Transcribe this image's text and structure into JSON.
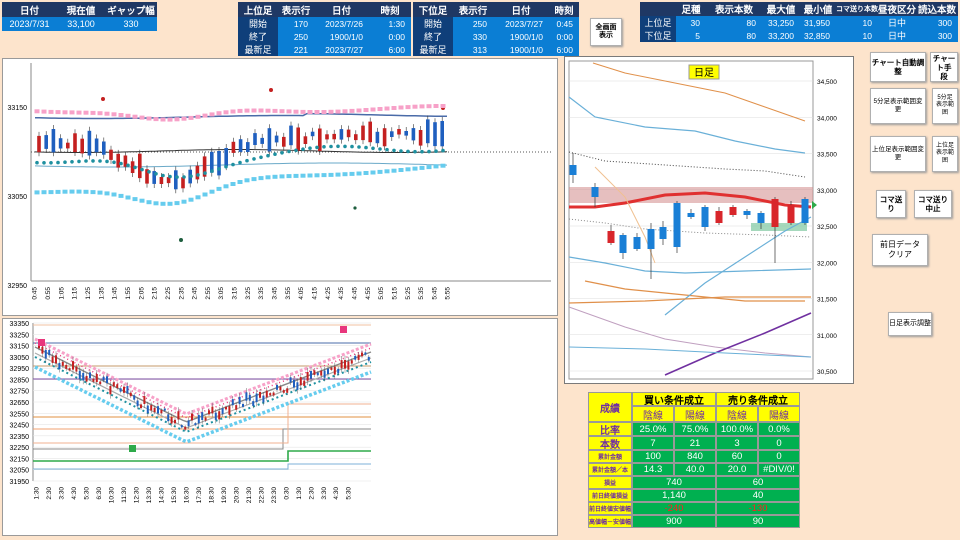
{
  "top_left": {
    "headers": [
      "日付",
      "現在値",
      "ギャップ幅"
    ],
    "values": [
      "2023/7/31",
      "33,100",
      "330"
    ]
  },
  "upper_leg": {
    "title": "上位足",
    "labels": [
      "開始",
      "終了",
      "最新足"
    ],
    "col_headers": [
      "表示行",
      "日付",
      "時刻"
    ],
    "rows": [
      [
        "170",
        "2023/7/26",
        "1:30"
      ],
      [
        "250",
        "1900/1/0",
        "0:00"
      ],
      [
        "221",
        "2023/7/27",
        "6:00"
      ]
    ]
  },
  "lower_leg": {
    "title": "下位足",
    "labels": [
      "開始",
      "終了",
      "最新足"
    ],
    "col_headers": [
      "表示行",
      "日付",
      "時刻"
    ],
    "rows": [
      [
        "250",
        "2023/7/27",
        "0:45"
      ],
      [
        "330",
        "1900/1/0",
        "0:00"
      ],
      [
        "313",
        "1900/1/0",
        "6:00"
      ]
    ]
  },
  "full_screen_button": "全画面\n表示",
  "summary": {
    "headers": [
      "足種",
      "表示本数",
      "最大値",
      "最小値",
      "コマ送り本数",
      "昼夜区分",
      "読込本数"
    ],
    "rows": [
      {
        "label": "上位足",
        "values": [
          "30",
          "80",
          "33,250",
          "31,950",
          "10",
          "日中",
          "300"
        ]
      },
      {
        "label": "下位足",
        "values": [
          "5",
          "80",
          "33,200",
          "32,850",
          "10",
          "日中",
          "300"
        ]
      }
    ]
  },
  "buttons": {
    "chart_auto": "チャート自動調整",
    "chart_custom": "チャート手\n段",
    "lower_range": "5分足表示範囲変更",
    "lower_range2": "5分足\n表示範\n囲",
    "upper_range": "上位足表示範囲変更",
    "upper_range2": "上位足\n表示範\n囲",
    "step": "コマ送り",
    "step_stop": "コマ送り\n中止",
    "clear_prev": "前日データ\nクリア",
    "daily_adjust": "日足表示調整"
  },
  "chart_top": {
    "y_ticks": [
      "33150",
      "33050",
      "32950"
    ],
    "x_ticks": [
      "0:45",
      "0:55",
      "1:05",
      "1:15",
      "1:25",
      "1:35",
      "1:45",
      "1:55",
      "2:05",
      "2:15",
      "2:25",
      "2:35",
      "2:45",
      "2:55",
      "3:05",
      "3:15",
      "3:25",
      "3:35",
      "3:45",
      "3:55",
      "4:05",
      "4:15",
      "4:25",
      "4:35",
      "4:45",
      "4:55",
      "5:05",
      "5:15",
      "5:25",
      "5:35",
      "5:45",
      "5:55"
    ],
    "colors": {
      "upper_band": "#4a6ba8",
      "mid_band": "#555555",
      "pink": "#f7a1c8",
      "magenta": "#e8367c",
      "teal": "#1e90a0",
      "cyan": "#66ccee"
    }
  },
  "chart_bottom": {
    "y_ticks": [
      "33350",
      "33250",
      "33150",
      "33050",
      "32950",
      "32850",
      "32750",
      "32650",
      "32550",
      "32450",
      "32350",
      "32250",
      "32150",
      "32050",
      "31950"
    ],
    "x_ticks": [
      "1:30",
      "2:30",
      "3:30",
      "4:30",
      "5:30",
      "6:30",
      "10:30",
      "11:30",
      "12:30",
      "13:30",
      "14:30",
      "15:30",
      "16:30",
      "17:30",
      "18:30",
      "19:30",
      "20:30",
      "21:30",
      "22:30",
      "23:30",
      "0:30",
      "1:30",
      "2:30",
      "3:30",
      "4:30",
      "5:30"
    ]
  },
  "chart_daily": {
    "title": "日足",
    "y_ticks": [
      "34,500",
      "34,000",
      "33,500",
      "33,000",
      "32,500",
      "32,000",
      "31,500",
      "31,000",
      "30,500"
    ],
    "colors": {
      "candle_up": "#1a7fd6",
      "candle_down": "#d8262b",
      "ma": "#e03030",
      "band": "#d28a8a"
    }
  },
  "results": {
    "buy_title": "買い条件成立",
    "sell_title": "売り条件成立",
    "sub_headers": [
      "陰線",
      "陽線",
      "陰線",
      "陽線"
    ],
    "rows": [
      {
        "label": "成績",
        "values": [
          "陰線",
          "陽線",
          "陰線",
          "陽線"
        ]
      },
      {
        "label": "比率",
        "values": [
          "25.0%",
          "75.0%",
          "100.0%",
          "0.0%"
        ]
      },
      {
        "label": "本数",
        "values": [
          "7",
          "21",
          "3",
          "0"
        ]
      },
      {
        "label": "累計金額",
        "values": [
          "100",
          "840",
          "60",
          "0"
        ]
      },
      {
        "label": "累計金額／本",
        "values": [
          "14.3",
          "40.0",
          "20.0",
          "#DIV/0!"
        ]
      },
      {
        "label": "損益",
        "values": [
          "740",
          "60"
        ]
      },
      {
        "label": "前日終値損益",
        "values": [
          "1,140",
          "40"
        ]
      },
      {
        "label": "前日終値安値幅",
        "values": [
          "-240",
          "-130"
        ]
      },
      {
        "label": "高値幅－安値幅",
        "values": [
          "900",
          "90"
        ]
      }
    ]
  }
}
